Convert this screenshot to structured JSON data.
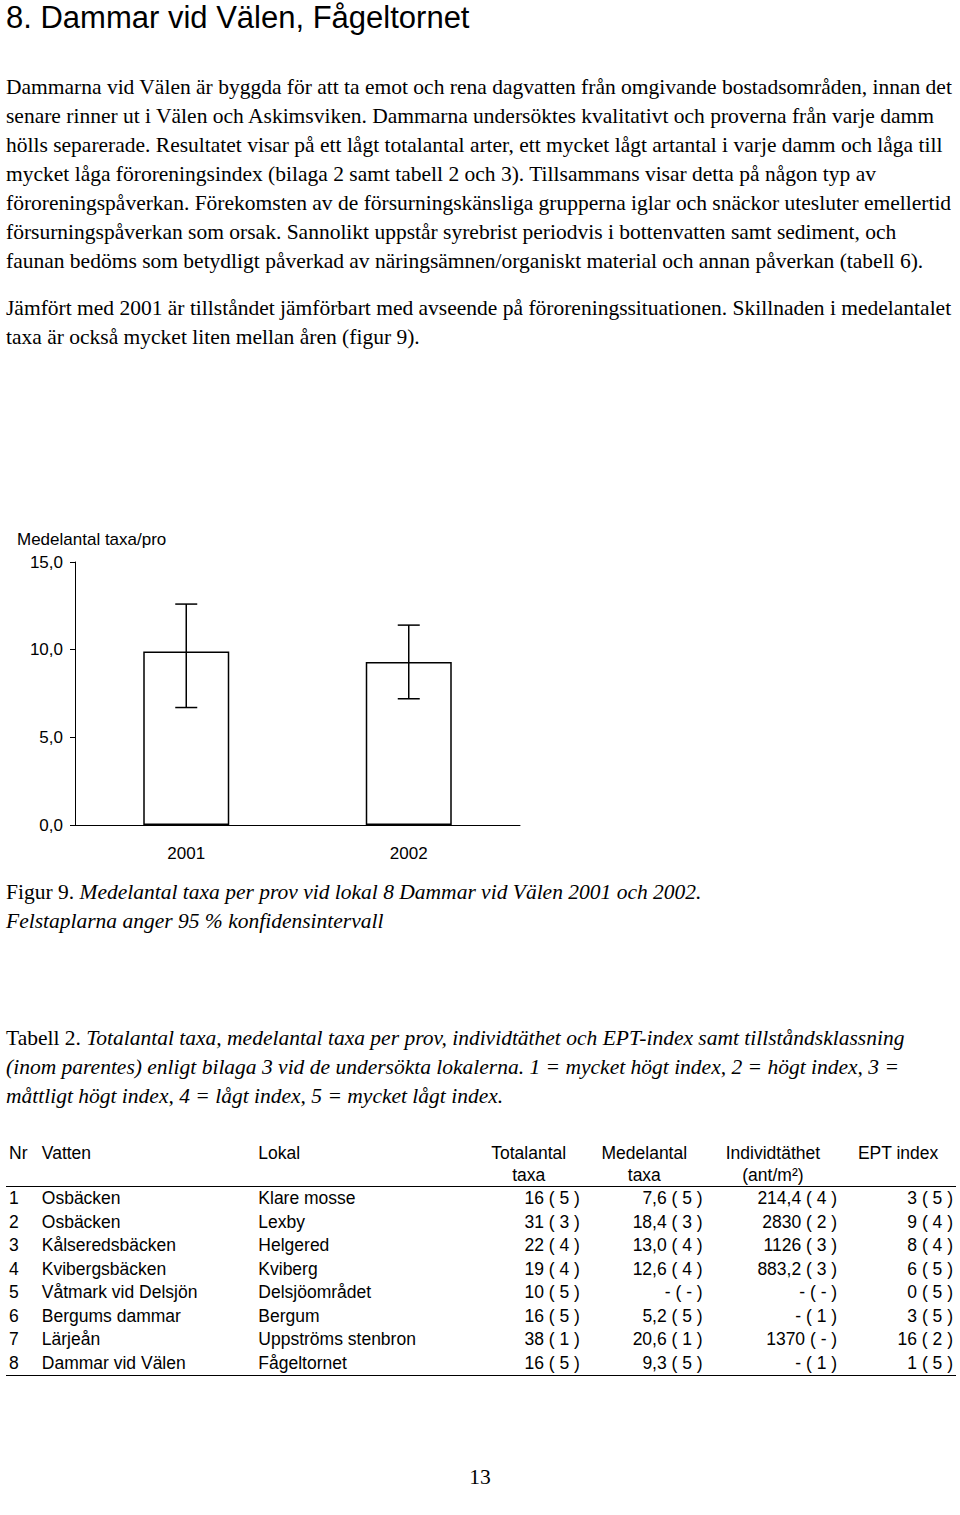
{
  "heading": "8. Dammar vid Välen, Fågeltornet",
  "paragraphs": [
    "Dammarna vid Välen är byggda för att ta emot och rena dagvatten från omgivande bostadsområden, innan det senare rinner ut i Välen och Askimsviken. Dammarna undersöktes kvalitativt och proverna från varje damm hölls separerade. Resultatet visar på ett lågt totalantal arter, ett mycket lågt artantal i varje damm och låga till mycket låga föroreningsindex (bilaga 2 samt tabell 2 och 3). Tillsammans visar detta på någon typ av föroreningspåverkan. Förekomsten av de försurningskänsliga grupperna iglar och snäckor utesluter emellertid försurningspåverkan som orsak. Sannolikt uppstår syrebrist periodvis i bottenvatten samt sediment, och faunan bedöms som betydligt påverkad av näringsämnen/organiskt material och annan påverkan (tabell 6).",
    "Jämfört med 2001 är tillståndet jämförbart med avseende på föroreningssituationen. Skillnaden i medelantalet taxa är också mycket liten mellan åren (figur 9)."
  ],
  "chart_data": {
    "type": "bar",
    "y_label": "Medelantal taxa/pro",
    "categories": [
      "2001",
      "2002"
    ],
    "values": [
      9.9,
      9.3
    ],
    "errors": [
      {
        "low": 6.7,
        "high": 12.6
      },
      {
        "low": 7.2,
        "high": 11.4
      }
    ],
    "color": "#ffffff",
    "ylim": [
      0,
      15
    ],
    "yticks": [
      {
        "value": 0,
        "label": "0,0"
      },
      {
        "value": 5,
        "label": "5,0"
      },
      {
        "value": 10,
        "label": "10,0"
      },
      {
        "value": 15,
        "label": "15,0"
      }
    ],
    "grid": false
  },
  "figure_caption": {
    "label": "Figur 9.",
    "lines": [
      "Medelantal taxa per prov vid lokal 8 Dammar vid Välen 2001 och 2002.",
      "Felstaplarna anger 95 % konfidensintervall"
    ]
  },
  "table_caption": {
    "label": "Tabell 2.",
    "text": "Totalantal taxa, medelantal taxa per prov, individtäthet och EPT-index samt tillståndsklassning (inom parentes) enligt bilaga 3 vid de undersökta lokalerna. 1 = mycket högt index, 2 = högt index, 3 = måttligt högt index, 4 = lågt index, 5 = mycket lågt index."
  },
  "table": {
    "header": [
      [
        "Nr"
      ],
      [
        "Vatten"
      ],
      [
        "Lokal"
      ],
      [
        "Totalantal",
        "taxa"
      ],
      [
        "Medelantal",
        "taxa"
      ],
      [
        "Individtäthet",
        "(ant/m²)"
      ],
      [
        "EPT index"
      ]
    ],
    "rows": [
      [
        "1",
        "Osbäcken",
        "Klare mosse",
        "16 ( 5 )",
        "7,6 ( 5 )",
        "214,4 ( 4 )",
        "3 ( 5 )"
      ],
      [
        "2",
        "Osbäcken",
        "Lexby",
        "31 ( 3 )",
        "18,4 ( 3 )",
        "2830 ( 2 )",
        "9 ( 4 )"
      ],
      [
        "3",
        "Kålseredsbäcken",
        "Helgered",
        "22 ( 4 )",
        "13,0 ( 4 )",
        "1126 ( 3 )",
        "8 ( 4 )"
      ],
      [
        "4",
        "Kvibergsbäcken",
        "Kviberg",
        "19 ( 4 )",
        "12,6 ( 4 )",
        "883,2 ( 3 )",
        "6 ( 5 )"
      ],
      [
        "5",
        "Våtmark vid Delsjön",
        "Delsjöområdet",
        "10 ( 5 )",
        "- ( - )",
        "- ( - )",
        "0 ( 5 )"
      ],
      [
        "6",
        "Bergums dammar",
        "Bergum",
        "16 ( 5 )",
        "5,2 ( 5 )",
        "- ( 1 )",
        "3 ( 5 )"
      ],
      [
        "7",
        "Lärjeån",
        "Uppströms stenbron",
        "38 ( 1 )",
        "20,6 ( 1 )",
        "1370 ( - )",
        "16 ( 2 )"
      ],
      [
        "8",
        "Dammar vid Välen",
        "Fågeltornet",
        "16 ( 5 )",
        "9,3 ( 5 )",
        "- ( 1 )",
        "1 ( 5 )"
      ]
    ]
  },
  "page_number": "13"
}
